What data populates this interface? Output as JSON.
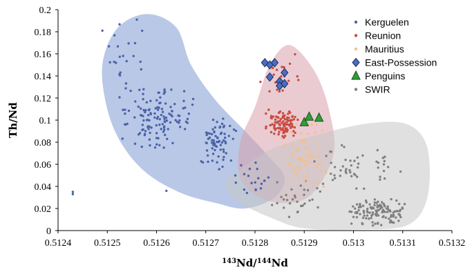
{
  "chart_data": {
    "type": "scatter",
    "xlabel": "143Nd/144Nd",
    "xlabel_parts": {
      "sup1": "143",
      "base1": "Nd/",
      "sup2": "144",
      "base2": "Nd"
    },
    "ylabel": "Th/Nd",
    "xlim": [
      0.5124,
      0.5132
    ],
    "ylim": [
      0,
      0.2
    ],
    "x_ticks": [
      {
        "value": 0.5124,
        "label": "0.5124"
      },
      {
        "value": 0.5125,
        "label": "0.5125"
      },
      {
        "value": 0.5126,
        "label": "0.5126"
      },
      {
        "value": 0.5127,
        "label": "0.5127"
      },
      {
        "value": 0.5128,
        "label": "0.5128"
      },
      {
        "value": 0.5129,
        "label": "0.5129"
      },
      {
        "value": 0.513,
        "label": "0.513"
      },
      {
        "value": 0.5131,
        "label": "0.5131"
      },
      {
        "value": 0.5132,
        "label": "0.5132"
      }
    ],
    "y_ticks": [
      {
        "value": 0,
        "label": "0"
      },
      {
        "value": 0.02,
        "label": "0.02"
      },
      {
        "value": 0.04,
        "label": "0.04"
      },
      {
        "value": 0.06,
        "label": "0.06"
      },
      {
        "value": 0.08,
        "label": "0.08"
      },
      {
        "value": 0.1,
        "label": "0.1"
      },
      {
        "value": 0.12,
        "label": "0.12"
      },
      {
        "value": 0.14,
        "label": "0.14"
      },
      {
        "value": 0.16,
        "label": "0.16"
      },
      {
        "value": 0.18,
        "label": "0.18"
      },
      {
        "value": 0.2,
        "label": "0.2"
      }
    ],
    "legend_position": "top-right",
    "fields": [
      {
        "name": "Kerguelen field",
        "color": "#7f9bd3",
        "outline": [
          [
            0.51264,
            0.184
          ],
          [
            0.51267,
            0.15
          ],
          [
            0.51272,
            0.118
          ],
          [
            0.51278,
            0.09
          ],
          [
            0.51283,
            0.066
          ],
          [
            0.51286,
            0.048
          ],
          [
            0.51284,
            0.03
          ],
          [
            0.51278,
            0.02
          ],
          [
            0.51272,
            0.025
          ],
          [
            0.51265,
            0.034
          ],
          [
            0.51258,
            0.052
          ],
          [
            0.51253,
            0.078
          ],
          [
            0.5125,
            0.11
          ],
          [
            0.51249,
            0.15
          ],
          [
            0.51252,
            0.183
          ],
          [
            0.51258,
            0.196
          ]
        ]
      },
      {
        "name": "Reunion/Mauritius field",
        "color": "#d9a0ab",
        "outline": [
          [
            0.5128,
            0.112
          ],
          [
            0.51283,
            0.15
          ],
          [
            0.51287,
            0.168
          ],
          [
            0.51292,
            0.145
          ],
          [
            0.51295,
            0.11
          ],
          [
            0.51296,
            0.07
          ],
          [
            0.51292,
            0.035
          ],
          [
            0.51287,
            0.025
          ],
          [
            0.51281,
            0.03
          ],
          [
            0.51277,
            0.048
          ],
          [
            0.51277,
            0.08
          ]
        ]
      },
      {
        "name": "SWIR field",
        "color": "#c6c6c6",
        "outline": [
          [
            0.51277,
            0.055
          ],
          [
            0.51283,
            0.073
          ],
          [
            0.51292,
            0.086
          ],
          [
            0.51303,
            0.097
          ],
          [
            0.51311,
            0.096
          ],
          [
            0.51315,
            0.075
          ],
          [
            0.51315,
            0.03
          ],
          [
            0.51311,
            0.005
          ],
          [
            0.51301,
            0.001
          ],
          [
            0.5129,
            0.002
          ],
          [
            0.51283,
            0.012
          ],
          [
            0.51276,
            0.028
          ],
          [
            0.51274,
            0.045
          ]
        ]
      }
    ],
    "series": [
      {
        "name": "Kerguelen",
        "marker": "dot",
        "color": "#4a63a8",
        "n": 240,
        "clusters": [
          {
            "x": [
              0.51252,
              0.51268
            ],
            "y": [
              0.072,
              0.135
            ],
            "n": 130
          },
          {
            "x": [
              0.51268,
              0.51277
            ],
            "y": [
              0.055,
              0.105
            ],
            "n": 70
          },
          {
            "x": [
              0.51249,
              0.51258
            ],
            "y": [
              0.13,
              0.19
            ],
            "n": 20
          },
          {
            "x": [
              0.51274,
              0.51284
            ],
            "y": [
              0.03,
              0.065
            ],
            "n": 20
          }
        ],
        "extra": [
          [
            0.51243,
            0.033
          ],
          [
            0.51243,
            0.035
          ],
          [
            0.51249,
            0.181
          ],
          [
            0.51256,
            0.191
          ],
          [
            0.51262,
            0.036
          ]
        ]
      },
      {
        "name": "Reunion",
        "marker": "dot",
        "color": "#c84b41",
        "n": 120,
        "clusters": [
          {
            "x": [
              0.51282,
              0.51289
            ],
            "y": [
              0.082,
              0.11
            ],
            "n": 100
          },
          {
            "x": [
              0.5128,
              0.5129
            ],
            "y": [
              0.11,
              0.165
            ],
            "n": 20
          }
        ]
      },
      {
        "name": "Mauritius",
        "marker": "dot",
        "color": "#f3c08c",
        "n": 70,
        "clusters": [
          {
            "x": [
              0.51285,
              0.51295
            ],
            "y": [
              0.035,
              0.105
            ],
            "n": 70
          }
        ]
      },
      {
        "name": "East-Possession",
        "marker": "diamond",
        "color": "#4a6dc4",
        "points": [
          [
            0.51282,
            0.152
          ],
          [
            0.51283,
            0.15
          ],
          [
            0.51284,
            0.152
          ],
          [
            0.51283,
            0.139
          ],
          [
            0.51285,
            0.135
          ],
          [
            0.51286,
            0.143
          ],
          [
            0.51285,
            0.131
          ],
          [
            0.51286,
            0.133
          ]
        ]
      },
      {
        "name": "Penguins",
        "marker": "triangle",
        "color": "#2e9e36",
        "points": [
          [
            0.5129,
            0.098
          ],
          [
            0.51291,
            0.103
          ],
          [
            0.51293,
            0.102
          ]
        ]
      },
      {
        "name": "SWIR",
        "marker": "dot",
        "color": "#808080",
        "n": 200,
        "clusters": [
          {
            "x": [
              0.51298,
              0.51312
            ],
            "y": [
              0.003,
              0.03
            ],
            "n": 120
          },
          {
            "x": [
              0.5129,
              0.5131
            ],
            "y": [
              0.03,
              0.08
            ],
            "n": 50
          },
          {
            "x": [
              0.51283,
              0.51295
            ],
            "y": [
              0.01,
              0.05
            ],
            "n": 30
          }
        ]
      }
    ]
  }
}
